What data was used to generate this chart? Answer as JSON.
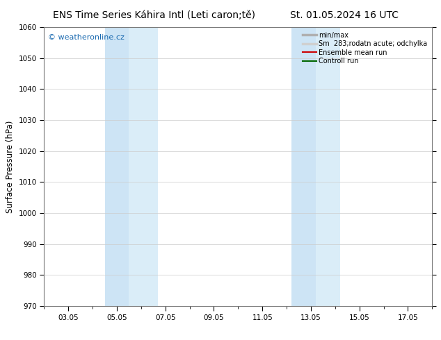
{
  "title_left": "ENS Time Series Káhira Intl (Leti caron;tě)",
  "title_right": "St. 01.05.2024 16 UTC",
  "ylabel": "Surface Pressure (hPa)",
  "ylim": [
    970,
    1060
  ],
  "yticks": [
    970,
    980,
    990,
    1000,
    1010,
    1020,
    1030,
    1040,
    1050,
    1060
  ],
  "xtick_labels": [
    "03.05",
    "05.05",
    "07.05",
    "09.05",
    "11.05",
    "13.05",
    "15.05",
    "17.05"
  ],
  "xtick_positions": [
    2,
    4,
    6,
    8,
    10,
    12,
    14,
    16
  ],
  "xlim": [
    1,
    17
  ],
  "shade_regions": [
    {
      "x_start": 3.5,
      "x_end": 4.5,
      "color": "#cde4f5"
    },
    {
      "x_start": 4.5,
      "x_end": 5.7,
      "color": "#daedf8"
    },
    {
      "x_start": 11.2,
      "x_end": 12.2,
      "color": "#cde4f5"
    },
    {
      "x_start": 12.2,
      "x_end": 13.2,
      "color": "#daedf8"
    }
  ],
  "watermark_text": "© weatheronline.cz",
  "watermark_color": "#1a6ab0",
  "legend_entries": [
    {
      "label": "min/max",
      "color": "#b0b0b0",
      "linewidth": 2.5
    },
    {
      "label": "Sm  283;rodatn acute; odchylka",
      "color": "#d0d0d0",
      "linewidth": 2.5
    },
    {
      "label": "Ensemble mean run",
      "color": "#cc0000",
      "linewidth": 1.5
    },
    {
      "label": "Controll run",
      "color": "#006600",
      "linewidth": 1.5
    }
  ],
  "bg_color": "#ffffff",
  "grid_color": "#cccccc",
  "title_fontsize": 10,
  "tick_fontsize": 7.5,
  "ylabel_fontsize": 8.5,
  "watermark_fontsize": 8,
  "legend_fontsize": 7
}
